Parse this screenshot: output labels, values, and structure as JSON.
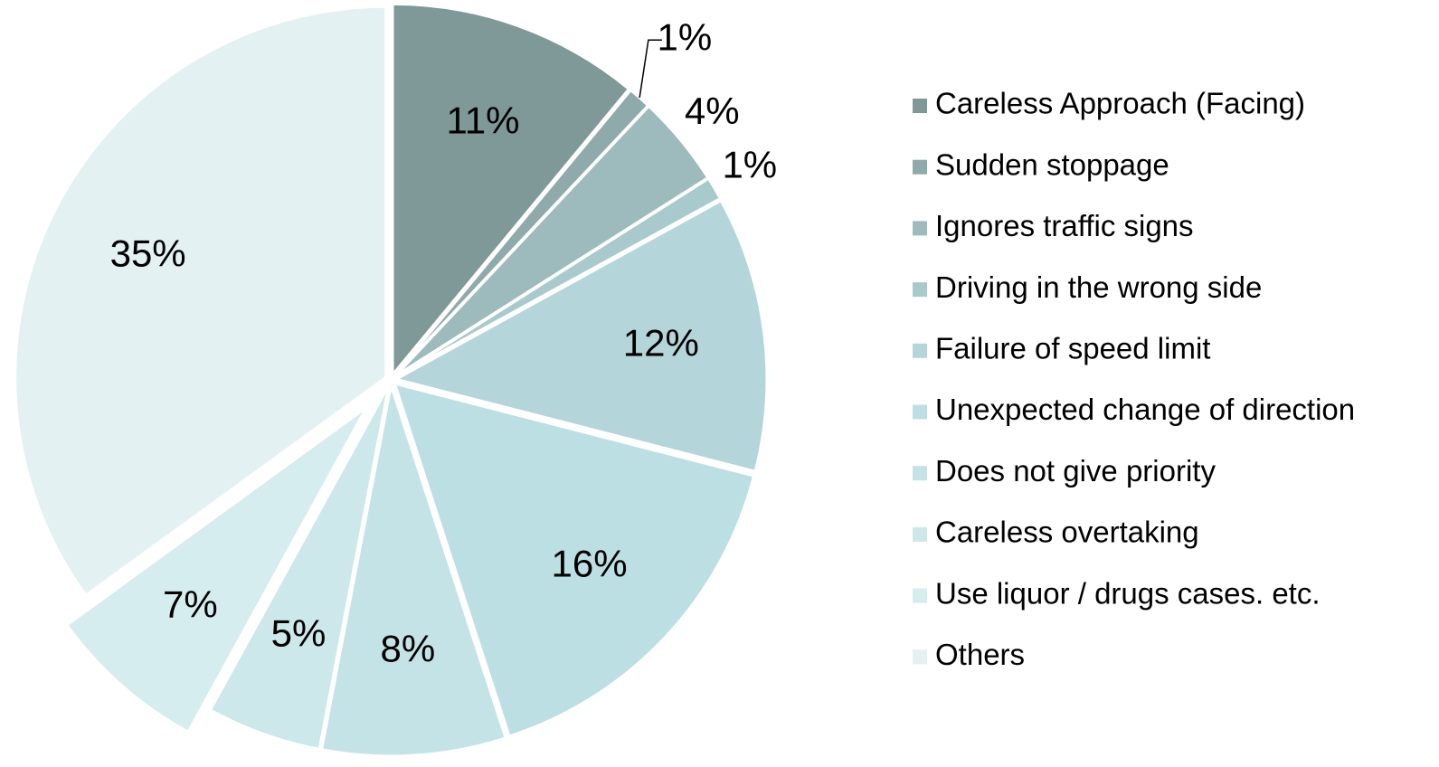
{
  "chart_data": {
    "type": "pie",
    "categories": [
      "Careless Approach (Facing)",
      "Sudden stoppage",
      "Ignores traffic signs",
      "Driving in the wrong side",
      "Failure of speed limit",
      "Unexpected change of direction",
      "Does not give priority",
      "Careless overtaking",
      "Use liquor / drugs cases. etc.",
      "Others"
    ],
    "values": [
      11,
      1,
      4,
      1,
      12,
      16,
      8,
      5,
      7,
      35
    ],
    "value_labels": [
      "11%",
      "1%",
      "4%",
      "1%",
      "12%",
      "16%",
      "8%",
      "5%",
      "7%",
      "35%"
    ],
    "colors": [
      "#7f9898",
      "#8faaab",
      "#9dbbbd",
      "#a9cacd",
      "#b4d6da",
      "#bcdfe3",
      "#c4e3e6",
      "#cde8eb",
      "#d6edef",
      "#e3f1f3"
    ],
    "legend": "right"
  }
}
